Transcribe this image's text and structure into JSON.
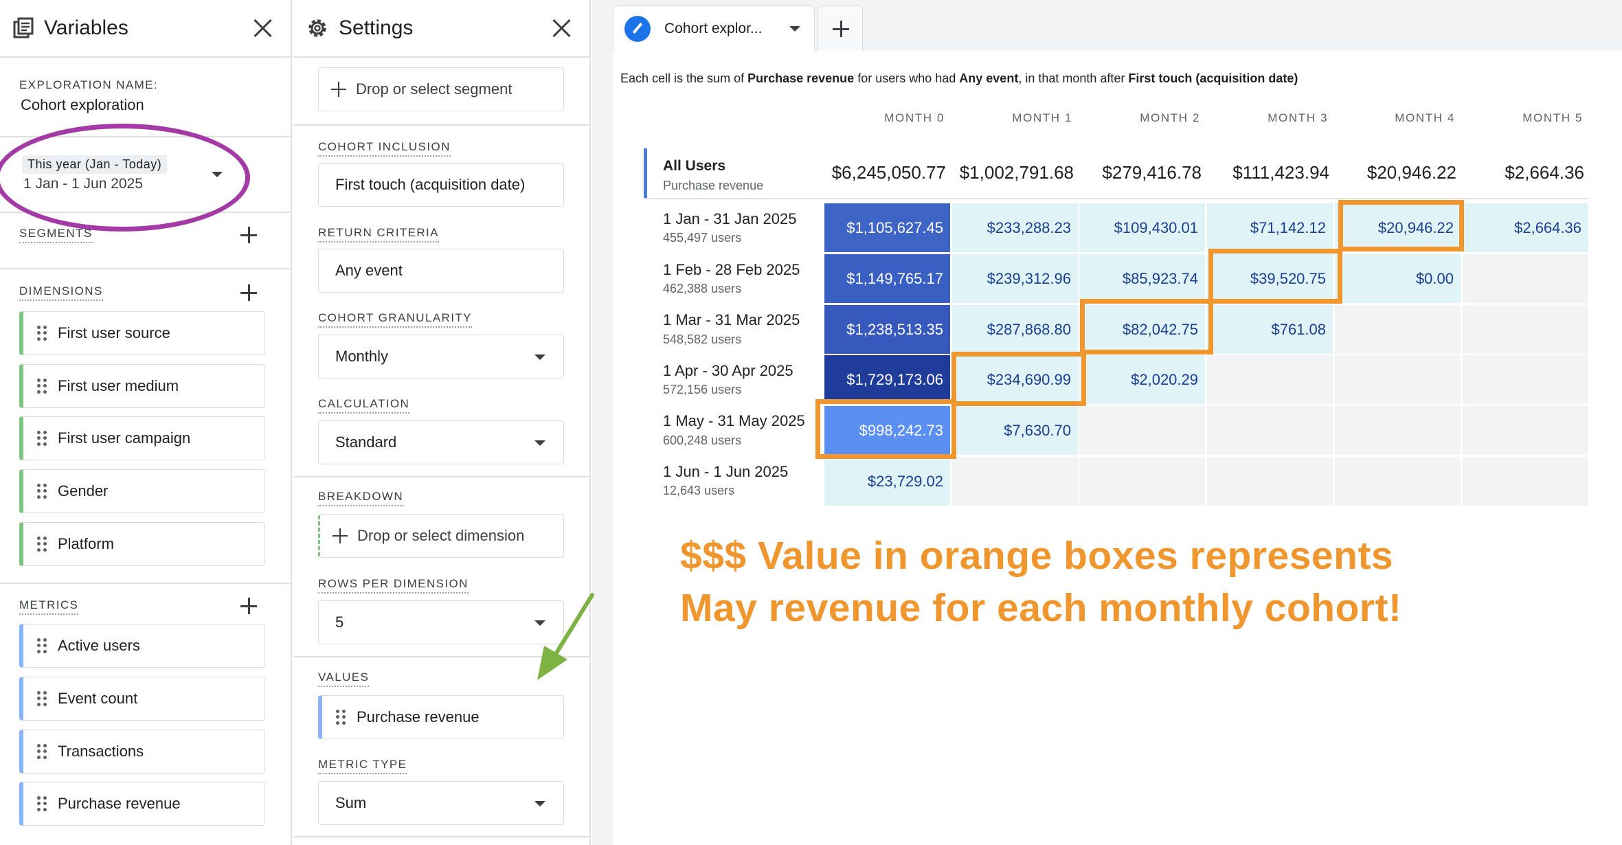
{
  "variables": {
    "title": "Variables",
    "exploration_name_label": "EXPLORATION NAME:",
    "exploration_name": "Cohort exploration",
    "date_chip": "This year (Jan - Today)",
    "date_range": "1 Jan - 1 Jun 2025",
    "segments_label": "SEGMENTS",
    "dimensions_label": "DIMENSIONS",
    "dimensions": [
      "First user source",
      "First user medium",
      "First user campaign",
      "Gender",
      "Platform"
    ],
    "metrics_label": "METRICS",
    "metrics": [
      "Active users",
      "Event count",
      "Transactions",
      "Purchase revenue"
    ]
  },
  "settings": {
    "title": "Settings",
    "segment_drop": "Drop or select segment",
    "cohort_inclusion_label": "COHORT INCLUSION",
    "cohort_inclusion": "First touch (acquisition date)",
    "return_criteria_label": "RETURN CRITERIA",
    "return_criteria": "Any event",
    "granularity_label": "COHORT GRANULARITY",
    "granularity": "Monthly",
    "calculation_label": "CALCULATION",
    "calculation": "Standard",
    "breakdown_label": "BREAKDOWN",
    "breakdown_drop": "Drop or select dimension",
    "rows_label": "ROWS PER DIMENSION",
    "rows": "5",
    "values_label": "VALUES",
    "value": "Purchase revenue",
    "metric_type_label": "METRIC TYPE",
    "metric_type": "Sum"
  },
  "tab": {
    "label": "Cohort explor..."
  },
  "table": {
    "caption": {
      "t1": "Each cell is the sum of ",
      "b1": "Purchase revenue",
      "t2": " for users who had ",
      "b2": "Any event",
      "t3": ", in that month after ",
      "b3": "First touch (acquisition date)"
    },
    "columns": [
      "MONTH 0",
      "MONTH 1",
      "MONTH 2",
      "MONTH 3",
      "MONTH 4",
      "MONTH 5"
    ],
    "all_users": {
      "title": "All Users",
      "sub": "Purchase revenue",
      "totals": [
        "$6,245,050.77",
        "$1,002,791.68",
        "$279,416.78",
        "$111,423.94",
        "$20,946.22",
        "$2,664.36"
      ]
    },
    "rows": [
      {
        "label": "1 Jan - 31 Jan 2025",
        "users": "455,497 users",
        "values": [
          "$1,105,627.45",
          "$233,288.23",
          "$109,430.01",
          "$71,142.12",
          "$20,946.22",
          "$2,664.36"
        ]
      },
      {
        "label": "1 Feb - 28 Feb 2025",
        "users": "462,388 users",
        "values": [
          "$1,149,765.17",
          "$239,312.96",
          "$85,923.74",
          "$39,520.75",
          "$0.00"
        ]
      },
      {
        "label": "1 Mar - 31 Mar 2025",
        "users": "548,582 users",
        "values": [
          "$1,238,513.35",
          "$287,868.80",
          "$82,042.75",
          "$761.08"
        ]
      },
      {
        "label": "1 Apr - 30 Apr 2025",
        "users": "572,156 users",
        "values": [
          "$1,729,173.06",
          "$234,690.99",
          "$2,020.29"
        ]
      },
      {
        "label": "1 May - 31 May 2025",
        "users": "600,248 users",
        "values": [
          "$998,242.73",
          "$7,630.70"
        ]
      },
      {
        "label": "1 Jun - 1 Jun 2025",
        "users": "12,643 users",
        "values": [
          "$23,729.02"
        ]
      }
    ]
  },
  "annotation": {
    "line1": "$$$ Value in orange boxes represents",
    "line2": "May revenue for each monthly cohort!"
  },
  "colors": {
    "accent": "#1a73e8",
    "annotation_orange": "#f0962f",
    "ellipse_purple": "#a43aa5",
    "arrow_green": "#7cb342"
  }
}
